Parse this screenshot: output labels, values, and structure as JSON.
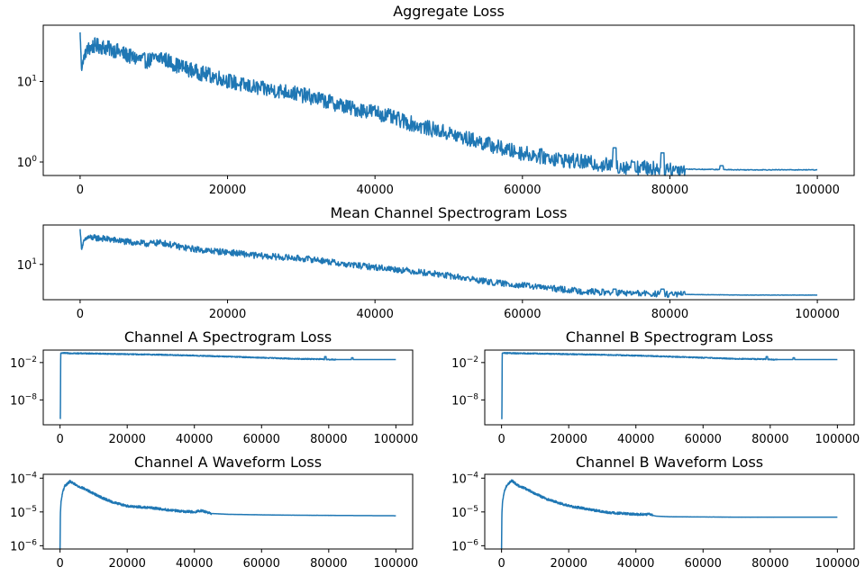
{
  "figure": {
    "background": "#ffffff",
    "series_color": "#1f77b4"
  },
  "chart_data": [
    {
      "id": "aggregate",
      "type": "line",
      "title": "Aggregate Loss",
      "xlim": [
        -5000,
        105000
      ],
      "ylim": [
        0.68,
        50
      ],
      "yscale": "log",
      "grid": false,
      "x_ticks": [
        0,
        20000,
        40000,
        60000,
        80000,
        100000
      ],
      "x_tick_labels": [
        "0",
        "20000",
        "40000",
        "60000",
        "80000",
        "100000"
      ],
      "y_ticks": [
        1,
        10
      ],
      "y_tick_labels": [
        {
          "base": "10",
          "exp": "0"
        },
        {
          "base": "10",
          "exp": "1"
        }
      ],
      "series": [
        {
          "x": [
            0,
            200,
            500,
            1000,
            2000,
            3000,
            5000,
            7000,
            9000,
            11000,
            13000,
            16000,
            19000,
            22000,
            25000,
            28000,
            31000,
            34000,
            37000,
            40000,
            43000,
            46000,
            49000,
            52000,
            55000,
            58000,
            62000,
            66000,
            70000,
            72000,
            74000,
            76000,
            79000,
            80000,
            85000,
            90000,
            95000,
            100000
          ],
          "y": [
            40,
            14,
            20,
            25,
            28,
            27,
            24,
            20,
            18,
            20,
            16,
            13,
            11,
            9,
            8,
            7.5,
            6.5,
            5.5,
            4.6,
            4.2,
            3.4,
            2.8,
            2.4,
            2.0,
            1.7,
            1.4,
            1.2,
            1.05,
            0.95,
            0.9,
            0.88,
            0.85,
            0.83,
            0.82,
            0.81,
            0.8,
            0.8,
            0.8
          ],
          "noise": 0.22,
          "spikes": [
            [
              72500,
              1.5
            ],
            [
              75000,
              1.0
            ],
            [
              79000,
              1.3
            ],
            [
              87000,
              0.9
            ]
          ]
        }
      ]
    },
    {
      "id": "mean-spec",
      "type": "line",
      "title": "Mean Channel Spectrogram Loss",
      "xlim": [
        -5000,
        105000
      ],
      "ylim": [
        2.6,
        45
      ],
      "yscale": "log",
      "grid": false,
      "x_ticks": [
        0,
        20000,
        40000,
        60000,
        80000,
        100000
      ],
      "x_tick_labels": [
        "0",
        "20000",
        "40000",
        "60000",
        "80000",
        "100000"
      ],
      "y_ticks": [
        10
      ],
      "y_tick_labels": [
        {
          "base": "10",
          "exp": "1"
        }
      ],
      "series": [
        {
          "x": [
            0,
            200,
            500,
            1000,
            3000,
            6000,
            9000,
            11000,
            14000,
            17000,
            20000,
            24000,
            28000,
            32000,
            36000,
            40000,
            44000,
            48000,
            52000,
            56000,
            60000,
            64000,
            68000,
            72000,
            76000,
            79000,
            80000,
            85000,
            90000,
            100000
          ],
          "y": [
            38,
            18,
            24,
            28,
            27,
            24,
            22,
            23,
            19,
            17,
            16,
            14,
            13,
            12,
            10,
            9,
            8,
            7,
            6,
            5,
            4.5,
            4.0,
            3.6,
            3.4,
            3.3,
            3.2,
            3.2,
            3.15,
            3.1,
            3.1
          ],
          "noise": 0.12,
          "spikes": [
            [
              72500,
              3.9
            ],
            [
              79000,
              3.9
            ]
          ]
        }
      ]
    },
    {
      "id": "chan-a-spec",
      "type": "line",
      "title": "Channel A Spectrogram Loss",
      "xlim": [
        -5000,
        105000
      ],
      "ylim": [
        1e-12,
        1
      ],
      "yscale": "log",
      "grid": false,
      "x_ticks": [
        0,
        20000,
        40000,
        60000,
        80000,
        100000
      ],
      "x_tick_labels": [
        "0",
        "20000",
        "40000",
        "60000",
        "80000",
        "100000"
      ],
      "y_ticks": [
        1e-08,
        0.01
      ],
      "y_tick_labels": [
        {
          "base": "10",
          "exp": "−8"
        },
        {
          "base": "10",
          "exp": "−2"
        }
      ],
      "series": [
        {
          "x": [
            0,
            100,
            200,
            400,
            1000,
            5000,
            10000,
            20000,
            30000,
            40000,
            50000,
            60000,
            70000,
            78000,
            80000,
            85000,
            90000,
            100000
          ],
          "y": [
            1e-11,
            1e-11,
            0.3,
            0.35,
            0.33,
            0.3,
            0.28,
            0.22,
            0.18,
            0.13,
            0.09,
            0.06,
            0.04,
            0.035,
            0.03,
            0.03,
            0.03,
            0.03
          ],
          "noise": 0.2,
          "spikes": [
            [
              79000,
              0.09
            ],
            [
              87000,
              0.06
            ]
          ]
        }
      ]
    },
    {
      "id": "chan-b-spec",
      "type": "line",
      "title": "Channel B Spectrogram Loss",
      "xlim": [
        -5000,
        105000
      ],
      "ylim": [
        1e-12,
        1
      ],
      "yscale": "log",
      "grid": false,
      "x_ticks": [
        0,
        20000,
        40000,
        60000,
        80000,
        100000
      ],
      "x_tick_labels": [
        "0",
        "20000",
        "40000",
        "60000",
        "80000",
        "100000"
      ],
      "y_ticks": [
        1e-08,
        0.01
      ],
      "y_tick_labels": [
        {
          "base": "10",
          "exp": "−8"
        },
        {
          "base": "10",
          "exp": "−2"
        }
      ],
      "series": [
        {
          "x": [
            0,
            100,
            200,
            400,
            1000,
            5000,
            10000,
            20000,
            30000,
            40000,
            50000,
            60000,
            70000,
            78000,
            80000,
            85000,
            90000,
            100000
          ],
          "y": [
            1e-11,
            1e-11,
            0.3,
            0.35,
            0.33,
            0.3,
            0.28,
            0.22,
            0.18,
            0.13,
            0.09,
            0.06,
            0.04,
            0.035,
            0.03,
            0.03,
            0.03,
            0.03
          ],
          "noise": 0.2,
          "spikes": [
            [
              79000,
              0.09
            ],
            [
              87000,
              0.06
            ]
          ]
        }
      ]
    },
    {
      "id": "chan-a-wave",
      "type": "line",
      "title": "Channel A Waveform Loss",
      "xlim": [
        -5000,
        105000
      ],
      "ylim": [
        8e-07,
        0.00013
      ],
      "yscale": "log",
      "grid": false,
      "x_ticks": [
        0,
        20000,
        40000,
        60000,
        80000,
        100000
      ],
      "x_tick_labels": [
        "0",
        "20000",
        "40000",
        "60000",
        "80000",
        "100000"
      ],
      "y_ticks": [
        1e-06,
        1e-05,
        0.0001
      ],
      "y_tick_labels": [
        {
          "base": "10",
          "exp": "−6"
        },
        {
          "base": "10",
          "exp": "−5"
        },
        {
          "base": "10",
          "exp": "−4"
        }
      ],
      "series": [
        {
          "x": [
            0,
            100,
            300,
            800,
            1500,
            3000,
            5000,
            7000,
            10000,
            13000,
            16000,
            20000,
            24000,
            28000,
            32000,
            36000,
            40000,
            42000,
            45000,
            50000,
            60000,
            70000,
            80000,
            90000,
            100000
          ],
          "y": [
            8e-07,
            9e-06,
            2e-05,
            4e-05,
            6e-05,
            8e-05,
            6e-05,
            5e-05,
            3.5e-05,
            2.5e-05,
            1.9e-05,
            1.5e-05,
            1.4e-05,
            1.3e-05,
            1.15e-05,
            1.05e-05,
            1e-05,
            1.1e-05,
            9e-06,
            8.5e-06,
            8.2e-06,
            8e-06,
            7.9e-06,
            7.8e-06,
            7.7e-06
          ],
          "noise": 0.08,
          "noise_end": 45000,
          "spikes": []
        }
      ]
    },
    {
      "id": "chan-b-wave",
      "type": "line",
      "title": "Channel B Waveform Loss",
      "xlim": [
        -5000,
        105000
      ],
      "ylim": [
        8e-07,
        0.00013
      ],
      "yscale": "log",
      "grid": false,
      "x_ticks": [
        0,
        20000,
        40000,
        60000,
        80000,
        100000
      ],
      "x_tick_labels": [
        "0",
        "20000",
        "40000",
        "60000",
        "80000",
        "100000"
      ],
      "y_ticks": [
        1e-06,
        1e-05,
        0.0001
      ],
      "y_tick_labels": [
        {
          "base": "10",
          "exp": "−6"
        },
        {
          "base": "10",
          "exp": "−5"
        },
        {
          "base": "10",
          "exp": "−4"
        }
      ],
      "series": [
        {
          "x": [
            0,
            100,
            300,
            800,
            1500,
            3000,
            5000,
            7000,
            10000,
            13000,
            16000,
            20000,
            24000,
            28000,
            32000,
            36000,
            40000,
            44000,
            46000,
            50000,
            60000,
            70000,
            80000,
            90000,
            100000
          ],
          "y": [
            8e-07,
            9e-06,
            2e-05,
            4e-05,
            6e-05,
            8.5e-05,
            6e-05,
            5e-05,
            3.5e-05,
            2.5e-05,
            2e-05,
            1.5e-05,
            1.3e-05,
            1.1e-05,
            9.5e-06,
            9e-06,
            8.5e-06,
            8.5e-06,
            7.5e-06,
            7.2e-06,
            7.1e-06,
            7e-06,
            7e-06,
            7e-06,
            7e-06
          ],
          "noise": 0.08,
          "noise_end": 45000,
          "spikes": []
        }
      ]
    }
  ]
}
